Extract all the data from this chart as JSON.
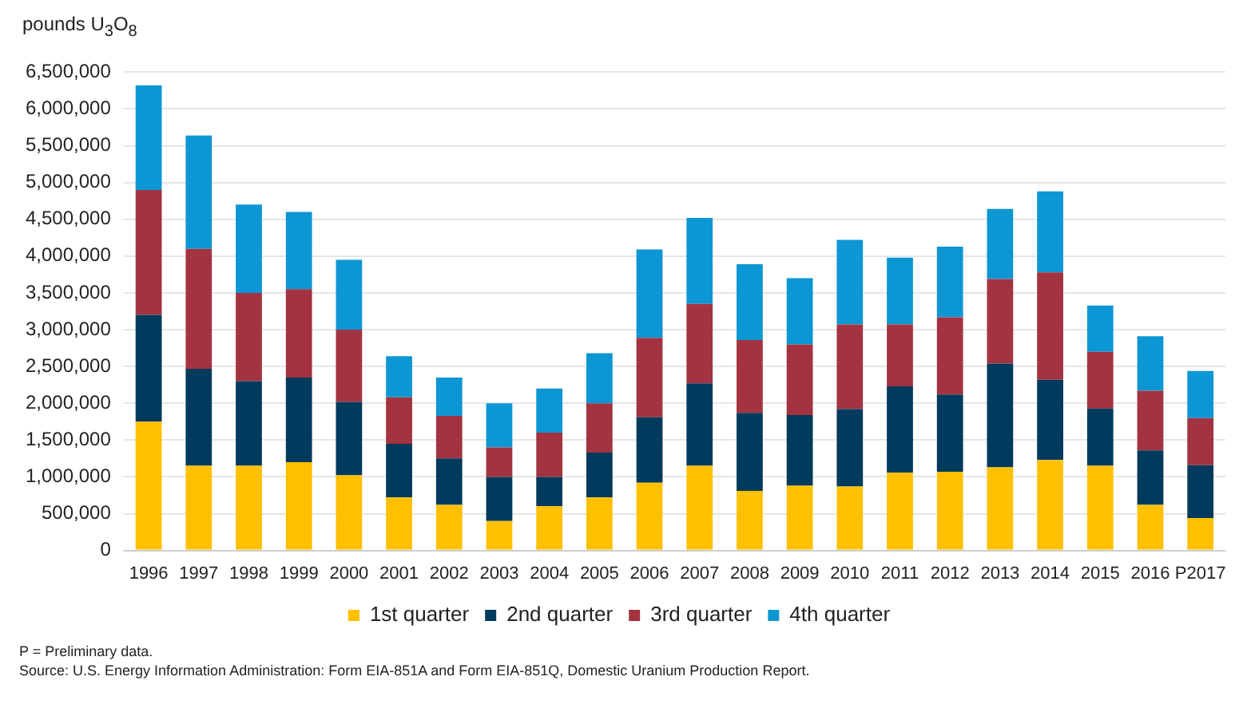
{
  "chart_data": {
    "type": "bar",
    "stacked": true,
    "ylabel": "pounds U$_{3}$O$_{8}$",
    "categories": [
      "1996",
      "1997",
      "1998",
      "1999",
      "2000",
      "2001",
      "2002",
      "2003",
      "2004",
      "2005",
      "2006",
      "2007",
      "2008",
      "2009",
      "2010",
      "2011",
      "2012",
      "2013",
      "2014",
      "2015",
      "2016",
      "P2017"
    ],
    "series": [
      {
        "name": "1st quarter",
        "color": "#ffc000",
        "values": [
          1750000,
          1150000,
          1150000,
          1200000,
          1020000,
          720000,
          620000,
          400000,
          600000,
          720000,
          920000,
          1150000,
          810000,
          880000,
          870000,
          1060000,
          1070000,
          1130000,
          1230000,
          1150000,
          620000,
          440000
        ]
      },
      {
        "name": "2nd quarter",
        "color": "#003a5c",
        "values": [
          1450000,
          1320000,
          1150000,
          1150000,
          1000000,
          730000,
          630000,
          600000,
          400000,
          610000,
          890000,
          1120000,
          1060000,
          960000,
          1050000,
          1170000,
          1050000,
          1410000,
          1090000,
          780000,
          740000,
          720000
        ]
      },
      {
        "name": "3rd quarter",
        "color": "#a33340",
        "values": [
          1700000,
          1630000,
          1200000,
          1200000,
          980000,
          630000,
          580000,
          400000,
          600000,
          670000,
          1080000,
          1080000,
          990000,
          960000,
          1150000,
          840000,
          1050000,
          1150000,
          1460000,
          770000,
          810000,
          640000
        ]
      },
      {
        "name": "4th quarter",
        "color": "#0d96d4",
        "values": [
          1420000,
          1540000,
          1200000,
          1050000,
          950000,
          560000,
          520000,
          600000,
          600000,
          680000,
          1200000,
          1170000,
          1030000,
          900000,
          1150000,
          910000,
          960000,
          950000,
          1100000,
          630000,
          740000,
          640000
        ]
      }
    ],
    "ylim": [
      0,
      6500000
    ],
    "yticks": [
      {
        "value": 0,
        "label": "0"
      },
      {
        "value": 500000,
        "label": "500,000"
      },
      {
        "value": 1000000,
        "label": "1,000,000"
      },
      {
        "value": 1500000,
        "label": "1,500,000"
      },
      {
        "value": 2000000,
        "label": "2,000,000"
      },
      {
        "value": 2500000,
        "label": "2,500,000"
      },
      {
        "value": 3000000,
        "label": "3,000,000"
      },
      {
        "value": 3500000,
        "label": "3,500,000"
      },
      {
        "value": 4000000,
        "label": "4,000,000"
      },
      {
        "value": 4500000,
        "label": "4,500,000"
      },
      {
        "value": 5000000,
        "label": "5,000,000"
      },
      {
        "value": 5500000,
        "label": "5,500,000"
      },
      {
        "value": 6000000,
        "label": "6,000,000"
      },
      {
        "value": 6500000,
        "label": "6,500,000"
      }
    ],
    "grid": "y",
    "legend": "bottom",
    "annotations": [
      "P = Preliminary data.",
      "Source: U.S. Energy Information Administration: Form EIA-851A and Form EIA-851Q, Domestic Uranium Production Report."
    ]
  }
}
